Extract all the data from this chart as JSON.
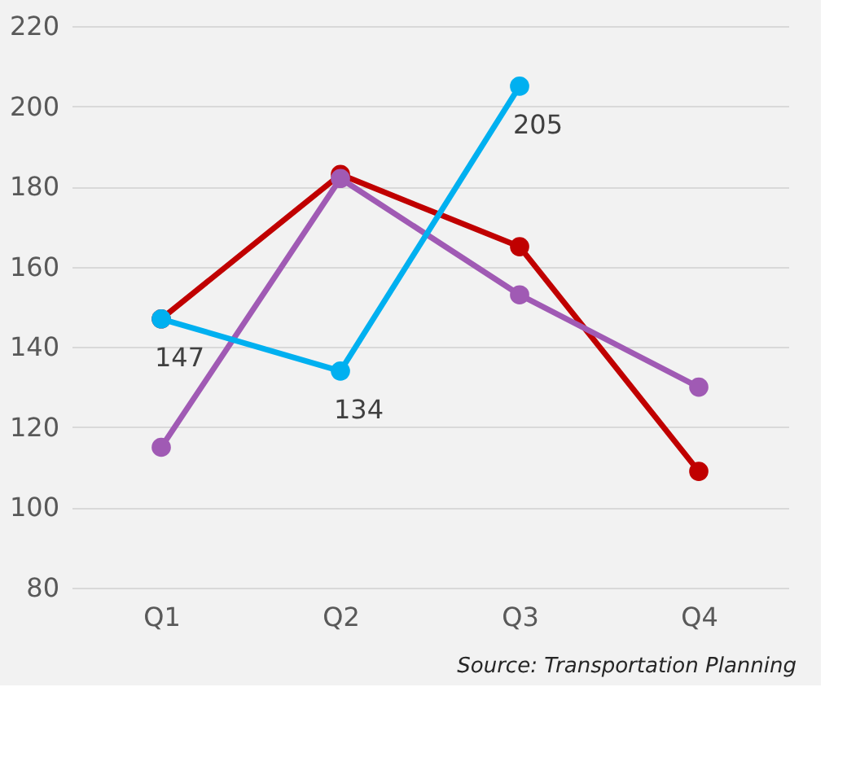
{
  "chart_data": {
    "type": "line",
    "categories": [
      "Q1",
      "Q2",
      "Q3",
      "Q4"
    ],
    "series": [
      {
        "color": "#c00000",
        "values": [
          147,
          183,
          165,
          109
        ]
      },
      {
        "color": "#a05ab4",
        "values": [
          115,
          182,
          153,
          130
        ]
      },
      {
        "color": "#00b0f0",
        "values": [
          147,
          134,
          205,
          null
        ],
        "value_labels": [
          "147",
          "134",
          "205",
          null
        ]
      }
    ],
    "ylim": [
      80,
      220
    ],
    "yticks": [
      80,
      100,
      120,
      140,
      160,
      180,
      200,
      220
    ],
    "grid": "y",
    "marker": "circle",
    "line_style": "solid",
    "annotations": [
      "Source: Transportation Planning"
    ]
  }
}
